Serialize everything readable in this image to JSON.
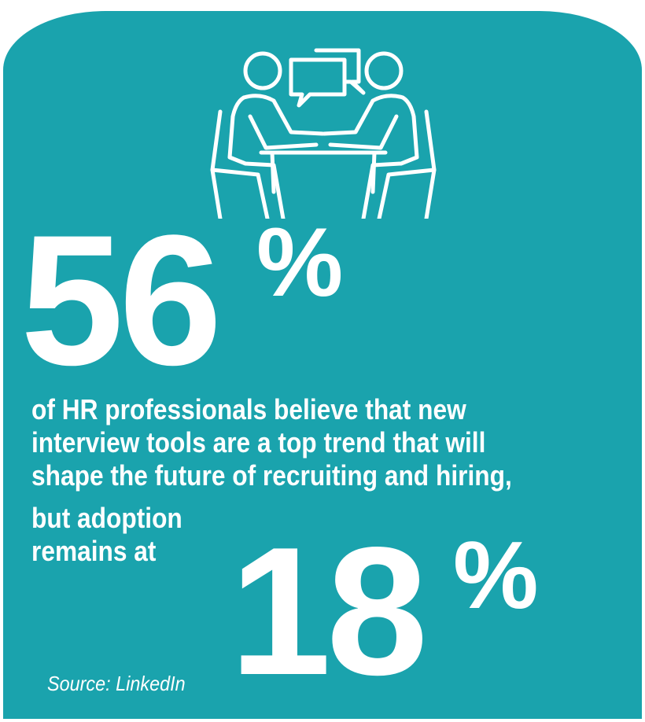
{
  "icon": "interview-meeting-icon",
  "colors": {
    "background": "#1aa3ad",
    "text": "#ffffff"
  },
  "stat_primary": {
    "value": "56",
    "unit": "%"
  },
  "description_lines": [
    "of HR professionals believe that new",
    "interview tools are a top trend that will",
    "shape the future of recruiting and hiring,",
    "but adoption",
    "remains at"
  ],
  "stat_secondary": {
    "value": "18",
    "unit": "%"
  },
  "source": "Source: LinkedIn"
}
